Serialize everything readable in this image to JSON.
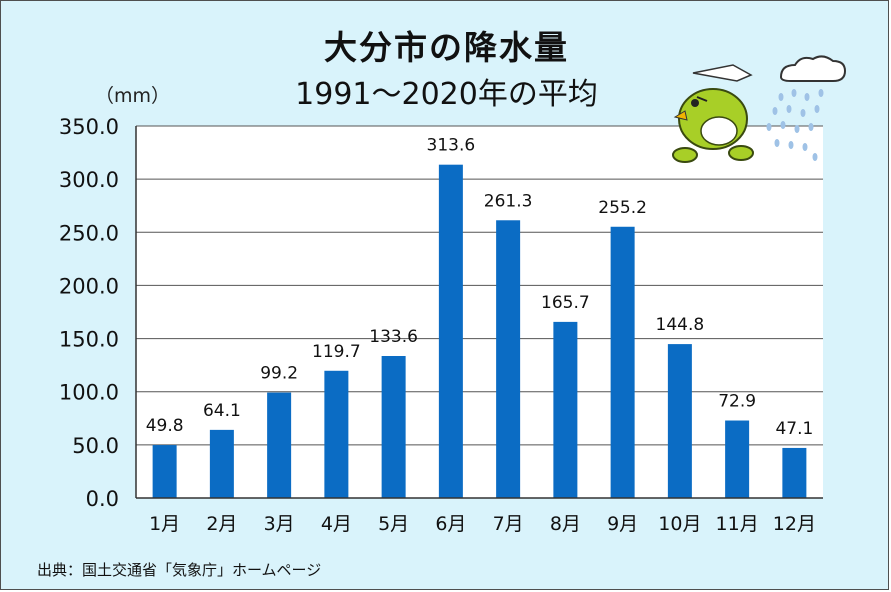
{
  "chart_data": {
    "type": "bar",
    "title": "大分市の降水量",
    "subtitle": "1991～2020年の平均",
    "ylabel": "（mm）",
    "xlabel": "",
    "categories": [
      "1月",
      "2月",
      "3月",
      "4月",
      "5月",
      "6月",
      "7月",
      "8月",
      "9月",
      "10月",
      "11月",
      "12月"
    ],
    "values": [
      49.8,
      64.1,
      99.2,
      119.7,
      133.6,
      313.6,
      261.3,
      165.7,
      255.2,
      144.8,
      72.9,
      47.1
    ],
    "value_labels": [
      "49.8",
      "64.1",
      "99.2",
      "119.7",
      "133.6",
      "313.6",
      "261.3",
      "165.7",
      "255.2",
      "144.8",
      "72.9",
      "47.1"
    ],
    "y_ticks": [
      "0.0",
      "50.0",
      "100.0",
      "150.0",
      "200.0",
      "250.0",
      "300.0",
      "350.0"
    ],
    "ylim": [
      0,
      350
    ],
    "grid": true,
    "bar_color": "#0b6cc4",
    "background_color": "#d9f3fb",
    "plot_background_color": "#ffffff"
  },
  "source": "出典：国土交通省「気象庁」ホームページ",
  "mascot": {
    "icon": "bird-mascot-icon",
    "cloud_icon": "rain-cloud-icon"
  }
}
